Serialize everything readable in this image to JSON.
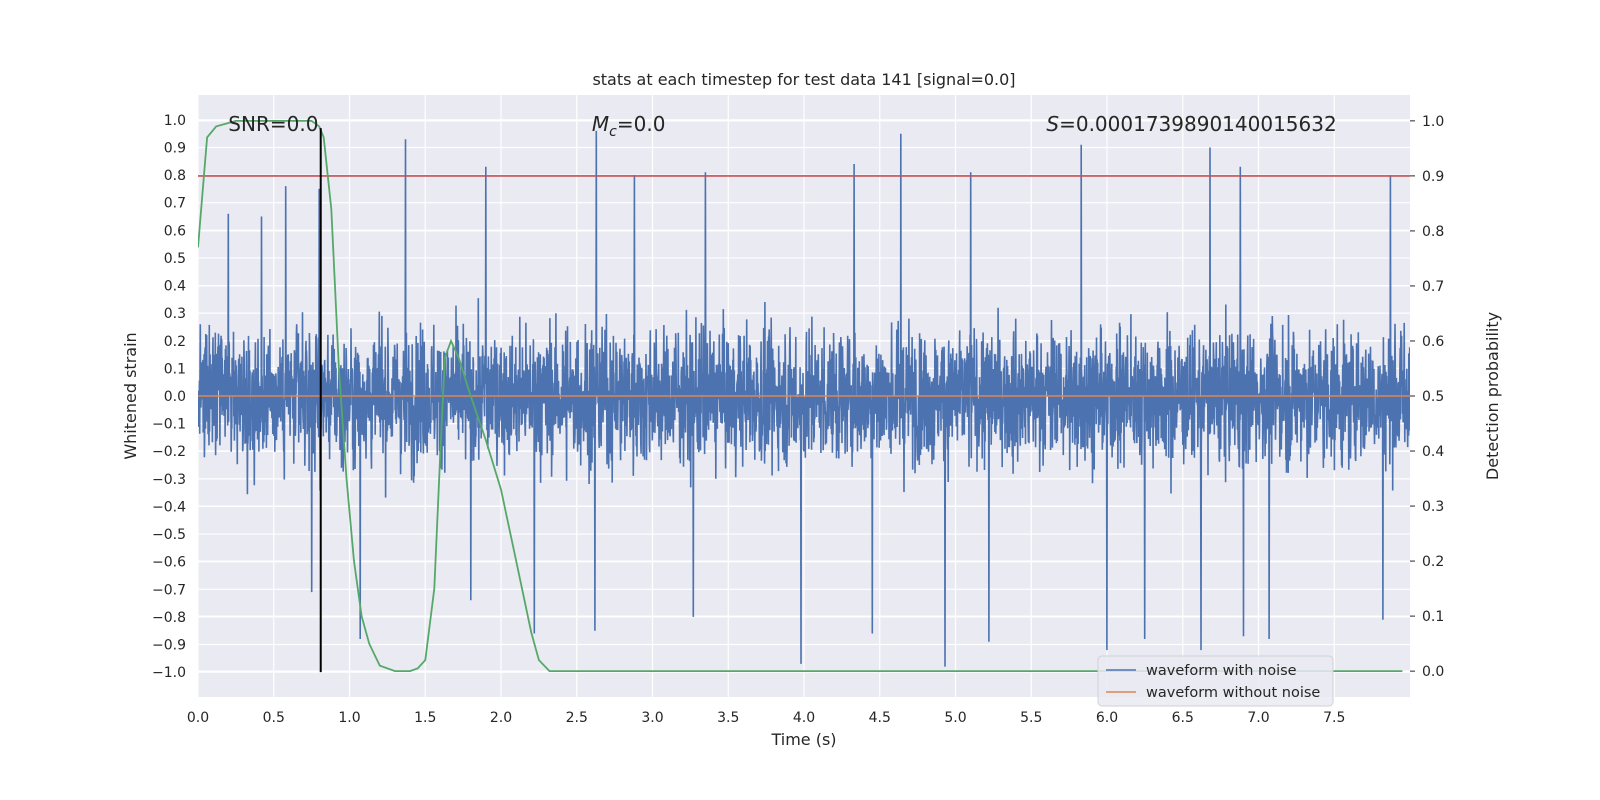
{
  "chart_data": {
    "type": "line",
    "title": "stats at each timestep for test data 141 [signal=0.0]",
    "xlabel": "Time (s)",
    "ylabel": "Whitened strain",
    "y2label": "Detection probability",
    "xlim": [
      0.0,
      8.0
    ],
    "ylim": [
      -1.09,
      1.09
    ],
    "y2lim": [
      -0.047,
      1.047
    ],
    "xticks": [
      "0.0",
      "0.5",
      "1.0",
      "1.5",
      "2.0",
      "2.5",
      "3.0",
      "3.5",
      "4.0",
      "4.5",
      "5.0",
      "5.5",
      "6.0",
      "6.5",
      "7.0",
      "7.5"
    ],
    "yticks": [
      "1.0",
      "0.9",
      "0.8",
      "0.7",
      "0.6",
      "0.5",
      "0.4",
      "0.3",
      "0.2",
      "0.1",
      "0.0",
      "-0.1",
      "-0.2",
      "-0.3",
      "-0.4",
      "-0.5",
      "-0.6",
      "-0.7",
      "-0.8",
      "-0.9",
      "-1.0"
    ],
    "y2ticks": [
      "1.0",
      "0.9",
      "0.8",
      "0.7",
      "0.6",
      "0.5",
      "0.4",
      "0.3",
      "0.2",
      "0.1",
      "0.0"
    ],
    "grid": true,
    "legend_position": "lower-right",
    "series": [
      {
        "name": "waveform with noise",
        "axis": "left",
        "color": "#4c72b0",
        "style": "dense-noise",
        "envelope_typical": 0.4,
        "peaks": [
          {
            "x": 0.2,
            "y": 0.66
          },
          {
            "x": 0.42,
            "y": 0.65
          },
          {
            "x": 0.58,
            "y": 0.76
          },
          {
            "x": 0.8,
            "y": 0.75
          },
          {
            "x": 1.37,
            "y": 0.93
          },
          {
            "x": 1.9,
            "y": 0.83
          },
          {
            "x": 2.63,
            "y": 0.96
          },
          {
            "x": 2.88,
            "y": 0.8
          },
          {
            "x": 3.35,
            "y": 0.81
          },
          {
            "x": 4.33,
            "y": 0.84
          },
          {
            "x": 4.64,
            "y": 0.95
          },
          {
            "x": 5.1,
            "y": 0.81
          },
          {
            "x": 5.83,
            "y": 0.91
          },
          {
            "x": 6.68,
            "y": 0.9
          },
          {
            "x": 6.88,
            "y": 0.83
          },
          {
            "x": 7.87,
            "y": 0.8
          },
          {
            "x": 0.75,
            "y": -0.71
          },
          {
            "x": 1.07,
            "y": -0.88
          },
          {
            "x": 1.8,
            "y": -0.74
          },
          {
            "x": 2.22,
            "y": -0.86
          },
          {
            "x": 2.62,
            "y": -0.85
          },
          {
            "x": 3.27,
            "y": -0.8
          },
          {
            "x": 3.98,
            "y": -0.97
          },
          {
            "x": 4.45,
            "y": -0.86
          },
          {
            "x": 4.93,
            "y": -0.98
          },
          {
            "x": 5.22,
            "y": -0.89
          },
          {
            "x": 6.0,
            "y": -0.92
          },
          {
            "x": 6.25,
            "y": -0.88
          },
          {
            "x": 6.62,
            "y": -0.92
          },
          {
            "x": 6.9,
            "y": -0.87
          },
          {
            "x": 7.07,
            "y": -0.88
          },
          {
            "x": 7.82,
            "y": -0.81
          }
        ]
      },
      {
        "name": "waveform without noise",
        "axis": "left",
        "color": "#dd8452",
        "x": [
          0.0,
          8.0
        ],
        "y": [
          0.0,
          0.0
        ]
      },
      {
        "name": "",
        "axis": "right",
        "color": "#55a868",
        "x": [
          0.0,
          0.06,
          0.12,
          0.25,
          0.5,
          0.75,
          0.8,
          0.83,
          0.88,
          0.93,
          0.98,
          1.03,
          1.08,
          1.13,
          1.2,
          1.3,
          1.4,
          1.45,
          1.5,
          1.56,
          1.6,
          1.63,
          1.67,
          1.72,
          1.8,
          1.9,
          2.0,
          2.1,
          2.2,
          2.25,
          2.32,
          2.5,
          3.0,
          4.0,
          5.0,
          6.0,
          7.0,
          7.95
        ],
        "y": [
          0.77,
          0.97,
          0.99,
          1.0,
          1.0,
          1.0,
          0.99,
          0.97,
          0.84,
          0.55,
          0.35,
          0.2,
          0.1,
          0.05,
          0.01,
          0.0,
          0.0,
          0.005,
          0.02,
          0.15,
          0.4,
          0.57,
          0.6,
          0.57,
          0.5,
          0.42,
          0.33,
          0.2,
          0.07,
          0.02,
          0.0,
          0.0,
          0.0,
          0.0,
          0.0,
          0.0,
          0.0,
          0.0
        ]
      }
    ],
    "hlines": [
      {
        "axis": "right",
        "y": 0.9,
        "color": "#c44e52"
      }
    ],
    "vlines": [
      {
        "x": 0.81,
        "ymin": -1.0,
        "ymax": 0.97,
        "color": "#000000"
      }
    ],
    "annotations": [
      {
        "text": "SNR=0.0",
        "x": 0.2,
        "y": 0.985
      },
      {
        "text_symbol": "M",
        "text_subscript": "c",
        "text_rest": "=0.0",
        "x": 2.6,
        "y": 0.985
      },
      {
        "text_symbol": "S",
        "text_rest": "=0.0001739890140015632",
        "x": 5.6,
        "y": 0.985
      }
    ]
  }
}
